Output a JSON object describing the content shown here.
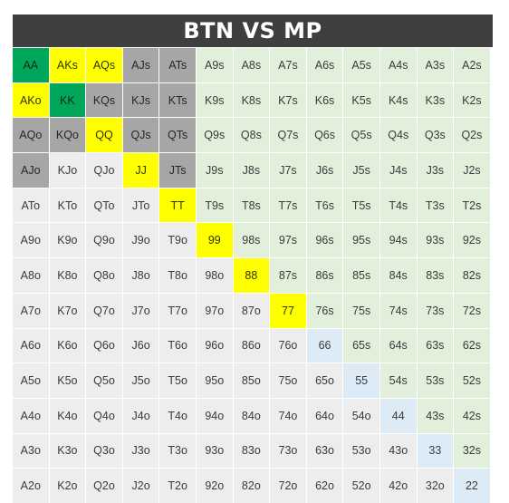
{
  "title": "BTN VS MP",
  "colors": {
    "green": "#00a65a",
    "yellow": "#ffff00",
    "gray": "#a6a6a6",
    "suited": "#e2efda",
    "offsuit": "#ededed",
    "pair": "#ddebf7"
  },
  "grid": [
    [
      "AA",
      "AKs",
      "AQs",
      "AJs",
      "ATs",
      "A9s",
      "A8s",
      "A7s",
      "A6s",
      "A5s",
      "A4s",
      "A3s",
      "A2s"
    ],
    [
      "AKo",
      "KK",
      "KQs",
      "KJs",
      "KTs",
      "K9s",
      "K8s",
      "K7s",
      "K6s",
      "K5s",
      "K4s",
      "K3s",
      "K2s"
    ],
    [
      "AQo",
      "KQo",
      "QQ",
      "QJs",
      "QTs",
      "Q9s",
      "Q8s",
      "Q7s",
      "Q6s",
      "Q5s",
      "Q4s",
      "Q3s",
      "Q2s"
    ],
    [
      "AJo",
      "KJo",
      "QJo",
      "JJ",
      "JTs",
      "J9s",
      "J8s",
      "J7s",
      "J6s",
      "J5s",
      "J4s",
      "J3s",
      "J2s"
    ],
    [
      "ATo",
      "KTo",
      "QTo",
      "JTo",
      "TT",
      "T9s",
      "T8s",
      "T7s",
      "T6s",
      "T5s",
      "T4s",
      "T3s",
      "T2s"
    ],
    [
      "A9o",
      "K9o",
      "Q9o",
      "J9o",
      "T9o",
      "99",
      "98s",
      "97s",
      "96s",
      "95s",
      "94s",
      "93s",
      "92s"
    ],
    [
      "A8o",
      "K8o",
      "Q8o",
      "J8o",
      "T8o",
      "98o",
      "88",
      "87s",
      "86s",
      "85s",
      "84s",
      "83s",
      "82s"
    ],
    [
      "A7o",
      "K7o",
      "Q7o",
      "J7o",
      "T7o",
      "97o",
      "87o",
      "77",
      "76s",
      "75s",
      "74s",
      "73s",
      "72s"
    ],
    [
      "A6o",
      "K6o",
      "Q6o",
      "J6o",
      "T6o",
      "96o",
      "86o",
      "76o",
      "66",
      "65s",
      "64s",
      "63s",
      "62s"
    ],
    [
      "A5o",
      "K5o",
      "Q5o",
      "J5o",
      "T5o",
      "95o",
      "85o",
      "75o",
      "65o",
      "55",
      "54s",
      "53s",
      "52s"
    ],
    [
      "A4o",
      "K4o",
      "Q4o",
      "J4o",
      "T4o",
      "94o",
      "84o",
      "74o",
      "64o",
      "54o",
      "44",
      "43s",
      "42s"
    ],
    [
      "A3o",
      "K3o",
      "Q3o",
      "J3o",
      "T3o",
      "93o",
      "83o",
      "73o",
      "63o",
      "53o",
      "43o",
      "33",
      "32s"
    ],
    [
      "A2o",
      "K2o",
      "Q2o",
      "J2o",
      "T2o",
      "92o",
      "82o",
      "72o",
      "62o",
      "52o",
      "42o",
      "32o",
      "22"
    ]
  ],
  "highlights": {
    "green": [
      "AA",
      "KK"
    ],
    "yellow": [
      "AKs",
      "AQs",
      "AKo",
      "QQ",
      "JJ",
      "TT",
      "99",
      "88",
      "77"
    ],
    "gray": [
      "AJs",
      "ATs",
      "KQs",
      "KJs",
      "KTs",
      "AQo",
      "KQo",
      "QJs",
      "QTs",
      "AJo",
      "JTs"
    ]
  }
}
